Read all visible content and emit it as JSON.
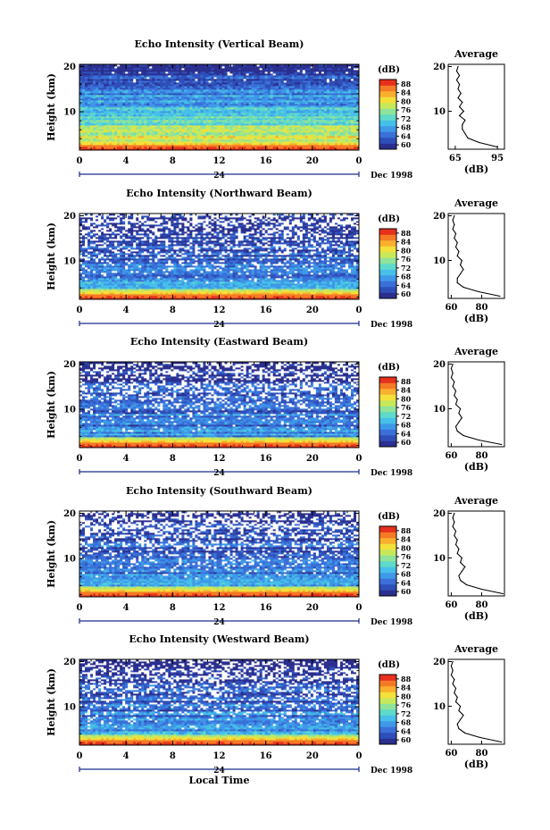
{
  "figure": {
    "xlabel": "Local Time",
    "date_label": "Dec 1998",
    "day_label": "24",
    "colorbar_unit": "(dB)",
    "average_title": "Average",
    "average_xlabel": "(dB)"
  },
  "colors": {
    "colormap": [
      "#2b2f8f",
      "#2f4fb8",
      "#3a70d8",
      "#3f98e8",
      "#46c0e8",
      "#5fd9c9",
      "#8fe39a",
      "#c8e85c",
      "#f3e03a",
      "#f9b02e",
      "#f57a25",
      "#e6301c"
    ],
    "missing": "#ffffff",
    "axis": "#000000",
    "time_bar": "#1a2a8a"
  },
  "chart_data": [
    {
      "type": "heatmap",
      "title": "Echo Intensity (Vertical Beam)",
      "xlabel": "",
      "ylabel": "Height (km)",
      "x_ticks": [
        "0",
        "4",
        "8",
        "12",
        "16",
        "20",
        "0"
      ],
      "xlim": [
        0,
        24
      ],
      "y_ticks": [
        "10",
        "20"
      ],
      "ylim": [
        1.5,
        20.5
      ],
      "colorbar": {
        "unit": "(dB)",
        "ticks": [
          "60",
          "64",
          "68",
          "72",
          "76",
          "80",
          "84",
          "88"
        ],
        "range": [
          58,
          90
        ]
      },
      "profile": {
        "title": "Average",
        "xlabel": "(dB)",
        "x_ticks": [
          "65",
          "95"
        ],
        "xlim": [
          60,
          100
        ],
        "y_ticks": [
          "10",
          "20"
        ],
        "height": [
          2,
          3,
          4,
          5,
          6,
          7,
          8,
          9,
          10,
          11,
          12,
          13,
          14,
          15,
          16,
          17,
          18,
          19,
          20
        ],
        "value": [
          95,
          82,
          74,
          72,
          70,
          70,
          72,
          68,
          71,
          68,
          70,
          67,
          69,
          67,
          68,
          66,
          68,
          66,
          67
        ]
      }
    },
    {
      "type": "heatmap",
      "title": "Echo Intensity (Northward Beam)",
      "xlabel": "",
      "ylabel": "Height (km)",
      "x_ticks": [
        "0",
        "4",
        "8",
        "12",
        "16",
        "20",
        "0"
      ],
      "xlim": [
        0,
        24
      ],
      "y_ticks": [
        "10",
        "20"
      ],
      "ylim": [
        1.5,
        20.5
      ],
      "colorbar": {
        "unit": "(dB)",
        "ticks": [
          "60",
          "64",
          "68",
          "72",
          "76",
          "80",
          "84",
          "88"
        ],
        "range": [
          58,
          90
        ]
      },
      "profile": {
        "title": "Average",
        "xlabel": "(dB)",
        "x_ticks": [
          "60",
          "80"
        ],
        "xlim": [
          58,
          95
        ],
        "y_ticks": [
          "10",
          "20"
        ],
        "height": [
          2,
          3,
          4,
          5,
          6,
          7,
          8,
          9,
          10,
          11,
          12,
          13,
          14,
          15,
          16,
          17,
          18,
          19,
          20
        ],
        "value": [
          92,
          78,
          68,
          64,
          64,
          66,
          68,
          66,
          67,
          64,
          65,
          63,
          64,
          62,
          63,
          61,
          62,
          61,
          62
        ]
      }
    },
    {
      "type": "heatmap",
      "title": "Echo Intensity (Eastward Beam)",
      "xlabel": "",
      "ylabel": "Height (km)",
      "x_ticks": [
        "0",
        "4",
        "8",
        "12",
        "16",
        "20",
        "0"
      ],
      "xlim": [
        0,
        24
      ],
      "y_ticks": [
        "10",
        "20"
      ],
      "ylim": [
        1.5,
        20.5
      ],
      "colorbar": {
        "unit": "(dB)",
        "ticks": [
          "60",
          "64",
          "68",
          "72",
          "76",
          "80",
          "84",
          "88"
        ],
        "range": [
          58,
          90
        ]
      },
      "profile": {
        "title": "Average",
        "xlabel": "(dB)",
        "x_ticks": [
          "60",
          "80"
        ],
        "xlim": [
          58,
          95
        ],
        "y_ticks": [
          "10",
          "20"
        ],
        "height": [
          2,
          3,
          4,
          5,
          6,
          7,
          8,
          9,
          10,
          11,
          12,
          13,
          14,
          15,
          16,
          17,
          18,
          19,
          20
        ],
        "value": [
          93,
          78,
          68,
          64,
          63,
          65,
          67,
          65,
          66,
          63,
          64,
          62,
          63,
          61,
          62,
          60,
          61,
          60,
          61
        ]
      }
    },
    {
      "type": "heatmap",
      "title": "Echo Intensity (Southward Beam)",
      "xlabel": "",
      "ylabel": "Height (km)",
      "x_ticks": [
        "0",
        "4",
        "8",
        "12",
        "16",
        "20",
        "0"
      ],
      "xlim": [
        0,
        24
      ],
      "y_ticks": [
        "10",
        "20"
      ],
      "ylim": [
        1.5,
        20.5
      ],
      "colorbar": {
        "unit": "(dB)",
        "ticks": [
          "60",
          "64",
          "68",
          "72",
          "76",
          "80",
          "84",
          "88"
        ],
        "range": [
          58,
          90
        ]
      },
      "profile": {
        "title": "Average",
        "xlabel": "(dB)",
        "x_ticks": [
          "60",
          "80"
        ],
        "xlim": [
          58,
          95
        ],
        "y_ticks": [
          "10",
          "20"
        ],
        "height": [
          2,
          3,
          4,
          5,
          6,
          7,
          8,
          9,
          10,
          11,
          12,
          13,
          14,
          15,
          16,
          17,
          18,
          19,
          20
        ],
        "value": [
          94,
          80,
          70,
          66,
          65,
          67,
          69,
          66,
          67,
          64,
          65,
          63,
          64,
          62,
          63,
          61,
          62,
          61,
          62
        ]
      }
    },
    {
      "type": "heatmap",
      "title": "Echo Intensity (Westward Beam)",
      "xlabel": "Local Time",
      "ylabel": "Height (km)",
      "x_ticks": [
        "0",
        "4",
        "8",
        "12",
        "16",
        "20",
        "0"
      ],
      "xlim": [
        0,
        24
      ],
      "y_ticks": [
        "10",
        "20"
      ],
      "ylim": [
        1.5,
        20.5
      ],
      "colorbar": {
        "unit": "(dB)",
        "ticks": [
          "60",
          "64",
          "68",
          "72",
          "76",
          "80",
          "84",
          "88"
        ],
        "range": [
          58,
          90
        ]
      },
      "profile": {
        "title": "Average",
        "xlabel": "(dB)",
        "x_ticks": [
          "60",
          "80"
        ],
        "xlim": [
          58,
          95
        ],
        "y_ticks": [
          "10",
          "20"
        ],
        "height": [
          2,
          3,
          4,
          5,
          6,
          7,
          8,
          9,
          10,
          11,
          12,
          13,
          14,
          15,
          16,
          17,
          18,
          19,
          20
        ],
        "value": [
          93,
          79,
          69,
          65,
          64,
          66,
          68,
          65,
          66,
          63,
          64,
          62,
          63,
          61,
          62,
          60,
          61,
          60,
          61
        ]
      }
    }
  ]
}
